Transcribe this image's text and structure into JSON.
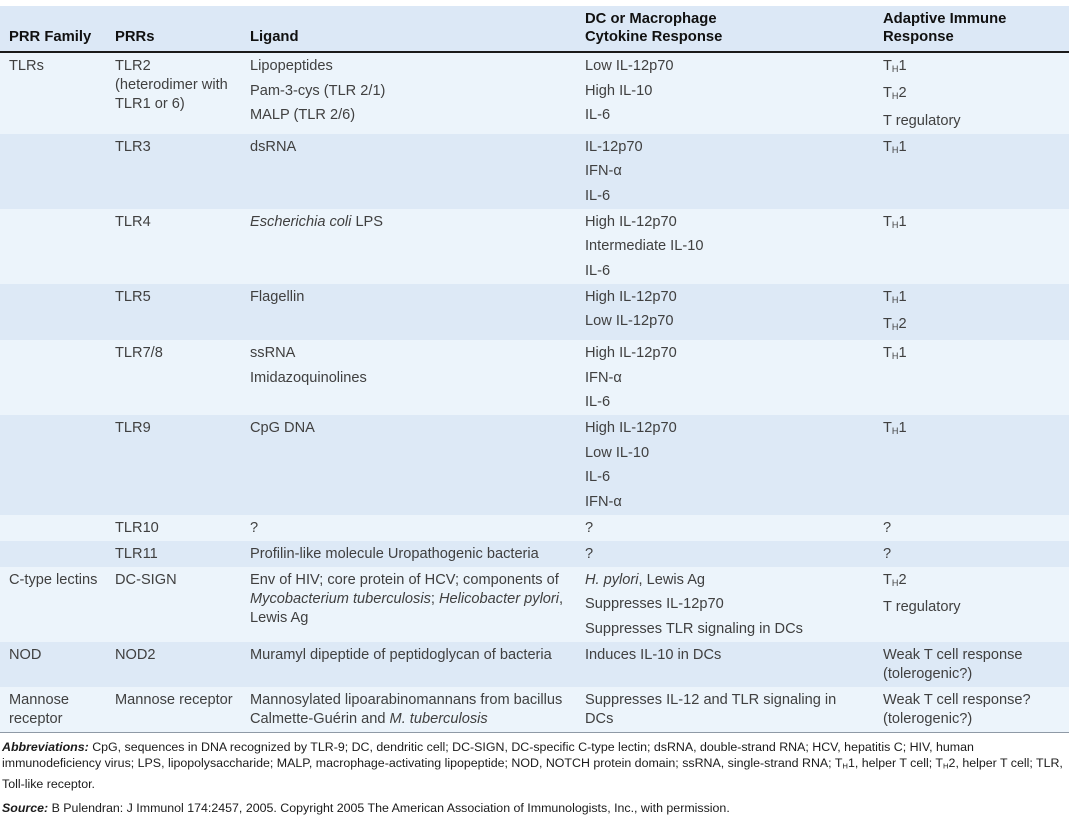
{
  "colors": {
    "row_light": "#ecf4fb",
    "row_dark": "#dde9f6",
    "header_band": "#dce8f6",
    "header_rule": "#1a1a1a",
    "header_text": "#111111",
    "body_text": "#404040"
  },
  "table": {
    "columns": [
      "PRR Family",
      "PRRs",
      "Ligand",
      "DC or Macrophage\nCytokine Response",
      "Adaptive Immune\nResponse"
    ],
    "rows": [
      {
        "family": [
          [
            {
              "t": "TLRs"
            }
          ]
        ],
        "prrs": [
          [
            {
              "t": "TLR2 (heterodimer with TLR1 or 6)"
            }
          ]
        ],
        "ligand": [
          [
            {
              "t": "Lipopeptides"
            }
          ],
          [
            {
              "t": "Pam-3-cys (TLR 2/1)"
            }
          ],
          [
            {
              "t": "MALP (TLR 2/6)"
            }
          ]
        ],
        "cytokine": [
          [
            {
              "t": "Low IL-12p70"
            }
          ],
          [
            {
              "t": "High IL-10"
            }
          ],
          [
            {
              "t": "IL-6"
            }
          ]
        ],
        "adaptive": [
          [
            {
              "t": "T"
            },
            {
              "t": "H",
              "sub": true
            },
            {
              "t": "1"
            }
          ],
          [
            {
              "t": "T"
            },
            {
              "t": "H",
              "sub": true
            },
            {
              "t": "2"
            }
          ],
          [
            {
              "t": "T regulatory"
            }
          ]
        ]
      },
      {
        "family": [],
        "prrs": [
          [
            {
              "t": "TLR3"
            }
          ]
        ],
        "ligand": [
          [
            {
              "t": "dsRNA"
            }
          ]
        ],
        "cytokine": [
          [
            {
              "t": "IL-12p70"
            }
          ],
          [
            {
              "t": "IFN-α"
            }
          ],
          [
            {
              "t": "IL-6"
            }
          ]
        ],
        "adaptive": [
          [
            {
              "t": "T"
            },
            {
              "t": "H",
              "sub": true
            },
            {
              "t": "1"
            }
          ]
        ]
      },
      {
        "family": [],
        "prrs": [
          [
            {
              "t": "TLR4"
            }
          ]
        ],
        "ligand": [
          [
            {
              "t": "Escherichia coli",
              "i": true
            },
            {
              "t": " LPS"
            }
          ]
        ],
        "cytokine": [
          [
            {
              "t": "High IL-12p70"
            }
          ],
          [
            {
              "t": "Intermediate IL-10"
            }
          ],
          [
            {
              "t": "IL-6"
            }
          ]
        ],
        "adaptive": [
          [
            {
              "t": "T"
            },
            {
              "t": "H",
              "sub": true
            },
            {
              "t": "1"
            }
          ]
        ]
      },
      {
        "family": [],
        "prrs": [
          [
            {
              "t": "TLR5"
            }
          ]
        ],
        "ligand": [
          [
            {
              "t": "Flagellin"
            }
          ]
        ],
        "cytokine": [
          [
            {
              "t": "High IL-12p70"
            }
          ],
          [
            {
              "t": "Low IL-12p70"
            }
          ]
        ],
        "adaptive": [
          [
            {
              "t": "T"
            },
            {
              "t": "H",
              "sub": true
            },
            {
              "t": "1"
            }
          ],
          [
            {
              "t": "T"
            },
            {
              "t": "H",
              "sub": true
            },
            {
              "t": "2"
            }
          ]
        ]
      },
      {
        "family": [],
        "prrs": [
          [
            {
              "t": "TLR7/8"
            }
          ]
        ],
        "ligand": [
          [
            {
              "t": "ssRNA"
            }
          ],
          [
            {
              "t": "Imidazoquinolines"
            }
          ]
        ],
        "cytokine": [
          [
            {
              "t": "High IL-12p70"
            }
          ],
          [
            {
              "t": "IFN-α"
            }
          ],
          [
            {
              "t": "IL-6"
            }
          ]
        ],
        "adaptive": [
          [
            {
              "t": "T"
            },
            {
              "t": "H",
              "sub": true
            },
            {
              "t": "1"
            }
          ]
        ]
      },
      {
        "family": [],
        "prrs": [
          [
            {
              "t": "TLR9"
            }
          ]
        ],
        "ligand": [
          [
            {
              "t": "CpG DNA"
            }
          ]
        ],
        "cytokine": [
          [
            {
              "t": "High IL-12p70"
            }
          ],
          [
            {
              "t": "Low IL-10"
            }
          ],
          [
            {
              "t": "IL-6"
            }
          ],
          [
            {
              "t": "IFN-α"
            }
          ]
        ],
        "adaptive": [
          [
            {
              "t": "T"
            },
            {
              "t": "H",
              "sub": true
            },
            {
              "t": "1"
            }
          ]
        ]
      },
      {
        "family": [],
        "prrs": [
          [
            {
              "t": "TLR10"
            }
          ]
        ],
        "ligand": [
          [
            {
              "t": "?"
            }
          ]
        ],
        "cytokine": [
          [
            {
              "t": "?"
            }
          ]
        ],
        "adaptive": [
          [
            {
              "t": "?"
            }
          ]
        ]
      },
      {
        "family": [],
        "prrs": [
          [
            {
              "t": "TLR11"
            }
          ]
        ],
        "ligand": [
          [
            {
              "t": "Profilin-like molecule Uropathogenic bacteria"
            }
          ]
        ],
        "cytokine": [
          [
            {
              "t": "?"
            }
          ]
        ],
        "adaptive": [
          [
            {
              "t": "?"
            }
          ]
        ]
      },
      {
        "family": [
          [
            {
              "t": "C-type lectins"
            }
          ]
        ],
        "prrs": [
          [
            {
              "t": "DC-SIGN"
            }
          ]
        ],
        "ligand": [
          [
            {
              "t": "Env of HIV; core protein of HCV; components of "
            },
            {
              "t": "Mycobacterium tuberculosis",
              "i": true
            },
            {
              "t": "; "
            },
            {
              "t": "Helicobacter pylori",
              "i": true
            },
            {
              "t": ", Lewis Ag"
            }
          ]
        ],
        "cytokine": [
          [
            {
              "t": "H. pylori",
              "i": true
            },
            {
              "t": ", Lewis Ag"
            }
          ],
          [
            {
              "t": "Suppresses IL-12p70"
            }
          ],
          [
            {
              "t": "Suppresses TLR signaling in DCs"
            }
          ]
        ],
        "adaptive": [
          [
            {
              "t": "T"
            },
            {
              "t": "H",
              "sub": true
            },
            {
              "t": "2"
            }
          ],
          [
            {
              "t": "T regulatory"
            }
          ]
        ]
      },
      {
        "family": [
          [
            {
              "t": "NOD"
            }
          ]
        ],
        "prrs": [
          [
            {
              "t": "NOD2"
            }
          ]
        ],
        "ligand": [
          [
            {
              "t": "Muramyl dipeptide of peptidoglycan of bacteria"
            }
          ]
        ],
        "cytokine": [
          [
            {
              "t": "Induces IL-10 in DCs"
            }
          ]
        ],
        "adaptive": [
          [
            {
              "t": "Weak T cell response (tolerogenic?)"
            }
          ]
        ]
      },
      {
        "family": [
          [
            {
              "t": "Mannose receptor"
            }
          ]
        ],
        "prrs": [
          [
            {
              "t": "Mannose receptor"
            }
          ]
        ],
        "ligand": [
          [
            {
              "t": "Mannosylated lipoarabinomannans from bacillus Calmette-Guérin and "
            },
            {
              "t": "M. tuberculosis",
              "i": true
            }
          ]
        ],
        "cytokine": [
          [
            {
              "t": "Suppresses IL-12 and TLR signaling in DCs"
            }
          ]
        ],
        "adaptive": [
          [
            {
              "t": "Weak T cell response? (tolerogenic?)"
            }
          ]
        ]
      }
    ]
  },
  "footnotes": {
    "abbreviations": {
      "segments": [
        {
          "t": "Abbreviations:",
          "b": true,
          "i": true
        },
        {
          "t": " CpG, sequences in DNA recognized by TLR-9; DC, dendritic cell; DC-SIGN, DC-specific C-type lectin; dsRNA, double-strand RNA; HCV, hepatitis C; HIV, human immunodeficiency virus; LPS, lipopolysaccharide; MALP, macrophage-activating lipopeptide; NOD, NOTCH protein domain; ssRNA, single-strand RNA; T"
        },
        {
          "t": "H",
          "sub": true
        },
        {
          "t": "1, helper T cell; T"
        },
        {
          "t": "H",
          "sub": true
        },
        {
          "t": "2, helper T cell; TLR, Toll-like receptor."
        }
      ]
    },
    "source": {
      "segments": [
        {
          "t": "Source:",
          "b": true,
          "i": true
        },
        {
          "t": " B Pulendran: J Immunol 174:2457, 2005. Copyright 2005 The American Association of Immunologists, Inc., with permission."
        }
      ]
    }
  }
}
